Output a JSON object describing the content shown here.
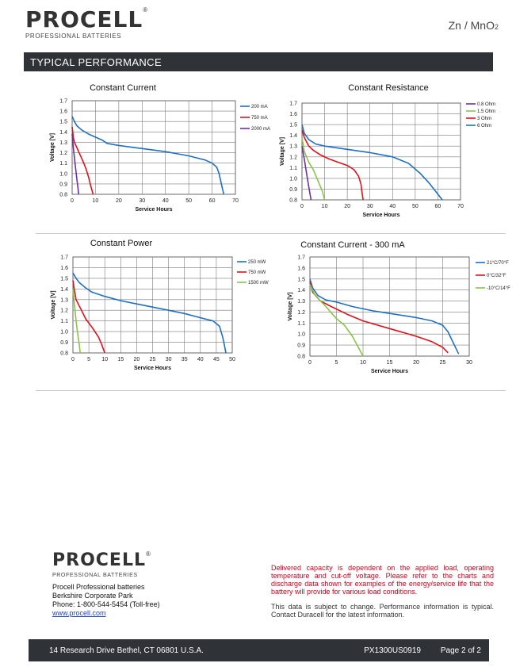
{
  "header": {
    "logo_word": "PROCELL",
    "logo_reg": "®",
    "logo_sub": "PROFESSIONAL BATTERIES",
    "chemistry": "Zn / MnO",
    "chemistry_sub": "2"
  },
  "banner": {
    "title": "TYPICAL  PERFORMANCE"
  },
  "colors": {
    "blue": "#1f6fc5",
    "red": "#e0111b",
    "purple": "#7030a0",
    "green": "#8bc34a",
    "banner": "#2f3237"
  },
  "chart_data": [
    {
      "type": "line",
      "title": "Constant Current",
      "xlabel": "Service Hours",
      "ylabel": "Voltage [V]",
      "xlim": [
        0,
        70
      ],
      "ylim": [
        0.8,
        1.7
      ],
      "xticks": [
        "0",
        "10",
        "20",
        "30",
        "40",
        "50",
        "60",
        "70"
      ],
      "yticks": [
        "0.8",
        "0.9",
        "1.0",
        "1.1",
        "1.2",
        "1.3",
        "1.4",
        "1.5",
        "1.6",
        "1.7"
      ],
      "grid": true,
      "legend": "right",
      "series": [
        {
          "name": "200 mA",
          "color": "#1f6fc5",
          "points": [
            [
              0,
              1.55
            ],
            [
              1,
              1.5
            ],
            [
              2,
              1.46
            ],
            [
              4,
              1.42
            ],
            [
              7,
              1.38
            ],
            [
              10,
              1.35
            ],
            [
              13,
              1.32
            ],
            [
              15,
              1.29
            ],
            [
              20,
              1.27
            ],
            [
              30,
              1.24
            ],
            [
              40,
              1.21
            ],
            [
              50,
              1.17
            ],
            [
              57,
              1.13
            ],
            [
              60,
              1.1
            ],
            [
              62,
              1.06
            ],
            [
              63,
              1.0
            ],
            [
              64,
              0.9
            ],
            [
              65,
              0.8
            ]
          ]
        },
        {
          "name": "750 mA",
          "color": "#e0111b",
          "points": [
            [
              0,
              1.45
            ],
            [
              0.5,
              1.35
            ],
            [
              1,
              1.3
            ],
            [
              2,
              1.25
            ],
            [
              3,
              1.2
            ],
            [
              4,
              1.15
            ],
            [
              5,
              1.1
            ],
            [
              6,
              1.04
            ],
            [
              7,
              0.97
            ],
            [
              8,
              0.88
            ],
            [
              9,
              0.8
            ]
          ]
        },
        {
          "name": "2000 mA",
          "color": "#7030a0",
          "points": [
            [
              0,
              1.38
            ],
            [
              0.5,
              1.25
            ],
            [
              1,
              1.15
            ],
            [
              1.5,
              1.05
            ],
            [
              2,
              0.95
            ],
            [
              2.5,
              0.86
            ],
            [
              2.8,
              0.8
            ]
          ]
        }
      ]
    },
    {
      "type": "line",
      "title": "Constant Resistance",
      "xlabel": "Service Hours",
      "ylabel": "Voltage [V]",
      "xlim": [
        0,
        70
      ],
      "ylim": [
        0.8,
        1.7
      ],
      "xticks": [
        "0",
        "10",
        "20",
        "30",
        "40",
        "50",
        "60",
        "70"
      ],
      "yticks": [
        "0.8",
        "0.9",
        "1.0",
        "1.1",
        "1.2",
        "1.3",
        "1.4",
        "1.5",
        "1.6",
        "1.7"
      ],
      "grid": true,
      "legend": "right",
      "series": [
        {
          "name": "0.8 Ohm",
          "color": "#7030a0",
          "points": [
            [
              0,
              1.3
            ],
            [
              1,
              1.18
            ],
            [
              2,
              1.05
            ],
            [
              3,
              0.92
            ],
            [
              4,
              0.8
            ]
          ]
        },
        {
          "name": "1.5 Ohm",
          "color": "#8bc34a",
          "points": [
            [
              0,
              1.38
            ],
            [
              1,
              1.25
            ],
            [
              3,
              1.15
            ],
            [
              5,
              1.08
            ],
            [
              7,
              0.98
            ],
            [
              9,
              0.88
            ],
            [
              10,
              0.8
            ]
          ]
        },
        {
          "name": "3 Ohm",
          "color": "#e0111b",
          "points": [
            [
              0,
              1.45
            ],
            [
              1,
              1.38
            ],
            [
              3,
              1.3
            ],
            [
              5,
              1.26
            ],
            [
              8,
              1.22
            ],
            [
              12,
              1.18
            ],
            [
              16,
              1.15
            ],
            [
              20,
              1.12
            ],
            [
              23,
              1.08
            ],
            [
              25,
              1.02
            ],
            [
              26,
              0.95
            ],
            [
              26.5,
              0.87
            ],
            [
              27,
              0.8
            ]
          ]
        },
        {
          "name": "6 Ohm",
          "color": "#1f6fc5",
          "points": [
            [
              0,
              1.5
            ],
            [
              1,
              1.42
            ],
            [
              3,
              1.36
            ],
            [
              6,
              1.32
            ],
            [
              10,
              1.3
            ],
            [
              20,
              1.27
            ],
            [
              30,
              1.24
            ],
            [
              40,
              1.2
            ],
            [
              47,
              1.14
            ],
            [
              52,
              1.05
            ],
            [
              56,
              0.96
            ],
            [
              59,
              0.88
            ],
            [
              62,
              0.8
            ]
          ]
        }
      ]
    },
    {
      "type": "line",
      "title": "Constant Power",
      "xlabel": "Service Hours",
      "ylabel": "Voltage [V]",
      "xlim": [
        0,
        50
      ],
      "ylim": [
        0.8,
        1.7
      ],
      "xticks": [
        "0",
        "5",
        "10",
        "15",
        "20",
        "25",
        "30",
        "35",
        "40",
        "45",
        "50"
      ],
      "yticks": [
        "0.8",
        "0.9",
        "1.0",
        "1.1",
        "1.2",
        "1.3",
        "1.4",
        "1.5",
        "1.6",
        "1.7"
      ],
      "grid": true,
      "legend": "right",
      "series": [
        {
          "name": "250 mW",
          "color": "#1f6fc5",
          "points": [
            [
              0,
              1.55
            ],
            [
              1,
              1.5
            ],
            [
              2,
              1.46
            ],
            [
              4,
              1.41
            ],
            [
              6,
              1.37
            ],
            [
              10,
              1.33
            ],
            [
              15,
              1.29
            ],
            [
              20,
              1.26
            ],
            [
              25,
              1.23
            ],
            [
              30,
              1.2
            ],
            [
              35,
              1.17
            ],
            [
              40,
              1.13
            ],
            [
              44,
              1.1
            ],
            [
              46,
              1.05
            ],
            [
              47,
              0.95
            ],
            [
              47.5,
              0.88
            ],
            [
              48,
              0.8
            ]
          ]
        },
        {
          "name": "750 mW",
          "color": "#e0111b",
          "points": [
            [
              0,
              1.48
            ],
            [
              0.5,
              1.38
            ],
            [
              1,
              1.3
            ],
            [
              2,
              1.24
            ],
            [
              3,
              1.18
            ],
            [
              4,
              1.12
            ],
            [
              6,
              1.04
            ],
            [
              8,
              0.95
            ],
            [
              9,
              0.88
            ],
            [
              10,
              0.8
            ]
          ]
        },
        {
          "name": "1500 mW",
          "color": "#8bc34a",
          "points": [
            [
              0,
              1.4
            ],
            [
              0.5,
              1.25
            ],
            [
              1,
              1.1
            ],
            [
              1.5,
              0.98
            ],
            [
              2,
              0.88
            ],
            [
              2.3,
              0.8
            ]
          ]
        }
      ]
    },
    {
      "type": "line",
      "title": "Constant Current - 300 mA",
      "xlabel": "Service Hours",
      "ylabel": "Voltage [V]",
      "xlim": [
        0,
        30
      ],
      "ylim": [
        0.8,
        1.7
      ],
      "xticks": [
        "0",
        "5",
        "10",
        "15",
        "20",
        "25",
        "30"
      ],
      "yticks": [
        "0.8",
        "0.9",
        "1.0",
        "1.1",
        "1.2",
        "1.3",
        "1.4",
        "1.5",
        "1.6",
        "1.7"
      ],
      "grid": true,
      "legend": "right",
      "series": [
        {
          "name": "21°C/70°F",
          "color": "#1f6fc5",
          "points": [
            [
              0,
              1.5
            ],
            [
              0.5,
              1.42
            ],
            [
              1.5,
              1.35
            ],
            [
              3,
              1.31
            ],
            [
              5,
              1.29
            ],
            [
              8,
              1.25
            ],
            [
              12,
              1.21
            ],
            [
              16,
              1.18
            ],
            [
              20,
              1.15
            ],
            [
              23,
              1.12
            ],
            [
              25,
              1.08
            ],
            [
              26,
              1.02
            ],
            [
              27,
              0.92
            ],
            [
              28,
              0.82
            ]
          ]
        },
        {
          "name": "0°C/32°F",
          "color": "#e0111b",
          "points": [
            [
              0,
              1.48
            ],
            [
              0.5,
              1.38
            ],
            [
              2,
              1.3
            ],
            [
              4,
              1.25
            ],
            [
              7,
              1.18
            ],
            [
              10,
              1.12
            ],
            [
              15,
              1.05
            ],
            [
              20,
              0.98
            ],
            [
              23,
              0.93
            ],
            [
              25,
              0.88
            ],
            [
              26,
              0.83
            ]
          ]
        },
        {
          "name": "-10°C/14°F",
          "color": "#8bc34a",
          "points": [
            [
              0,
              1.45
            ],
            [
              1,
              1.35
            ],
            [
              3,
              1.25
            ],
            [
              5,
              1.14
            ],
            [
              6.5,
              1.08
            ],
            [
              8,
              0.98
            ],
            [
              9,
              0.89
            ],
            [
              10,
              0.8
            ]
          ]
        }
      ]
    }
  ],
  "footer": {
    "logo_word": "PROCELL",
    "logo_reg": "®",
    "logo_sub": "PROFESSIONAL BATTERIES",
    "company": "Procell Professional batteries",
    "park": "Berkshire Corporate Park",
    "phone": "Phone: 1-800-544-5454 (Toll-free)",
    "website": "www.procell.com",
    "red_note": "Delivered capacity is dependent on the applied load, operating temperature and cut-off voltage. Please refer to the charts and discharge data shown for examples of the energy/service life that the battery will provide for various load conditions.",
    "grey_note": "This data is subject to change. Performance information is typical. Contact Duracell for the latest information.",
    "address": "14 Research Drive Bethel, CT 06801 U.S.A.",
    "doc_code": "PX1300US0919",
    "page": "Page 2 of 2"
  }
}
